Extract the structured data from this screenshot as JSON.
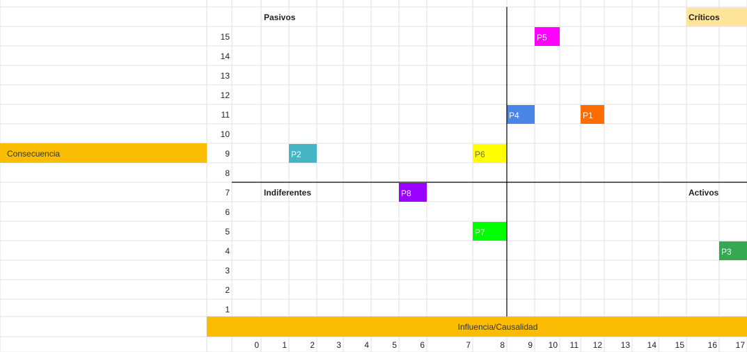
{
  "chart_data": {
    "type": "scatter",
    "xlabel": "Influencia/Causalidad",
    "ylabel": "Consecuencia",
    "x_ticks": [
      "0",
      "1",
      "2",
      "3",
      "4",
      "5",
      "6",
      "7",
      "8",
      "9",
      "10",
      "11",
      "12",
      "13",
      "14",
      "15",
      "16",
      "17"
    ],
    "y_ticks": [
      "1",
      "2",
      "3",
      "4",
      "5",
      "6",
      "7",
      "8",
      "9",
      "10",
      "11",
      "12",
      "13",
      "14",
      "15"
    ],
    "xlim": [
      0,
      17
    ],
    "ylim": [
      1,
      15
    ],
    "divider_x": 8,
    "divider_y": 7.5,
    "quadrants": [
      {
        "label": "Pasivos",
        "position": "top-left",
        "highlight": ""
      },
      {
        "label": "Críticos",
        "position": "top-right",
        "highlight": "#ffe599"
      },
      {
        "label": "Indiferentes",
        "position": "bottom-left",
        "highlight": ""
      },
      {
        "label": "Activos",
        "position": "bottom-right",
        "highlight": ""
      }
    ],
    "points": [
      {
        "label": "P5",
        "x": 9,
        "y": 15,
        "color": "#ff00ff"
      },
      {
        "label": "P4",
        "x": 8,
        "y": 11,
        "color": "#4a86e8"
      },
      {
        "label": "P1",
        "x": 11,
        "y": 11,
        "color": "#ff6d01"
      },
      {
        "label": "P2",
        "x": 1,
        "y": 9,
        "color": "#45b5c4"
      },
      {
        "label": "P6",
        "x": 7,
        "y": 9,
        "color": "#ffff00"
      },
      {
        "label": "P8",
        "x": 5,
        "y": 7,
        "color": "#9900ff"
      },
      {
        "label": "P7",
        "x": 7,
        "y": 5,
        "color": "#00ff00"
      },
      {
        "label": "P3",
        "x": 16,
        "y": 4,
        "color": "#34a853"
      }
    ]
  },
  "colors": {
    "axis_band": "#fbbc04",
    "grid": "#e2e2e2",
    "divider": "#000000"
  }
}
